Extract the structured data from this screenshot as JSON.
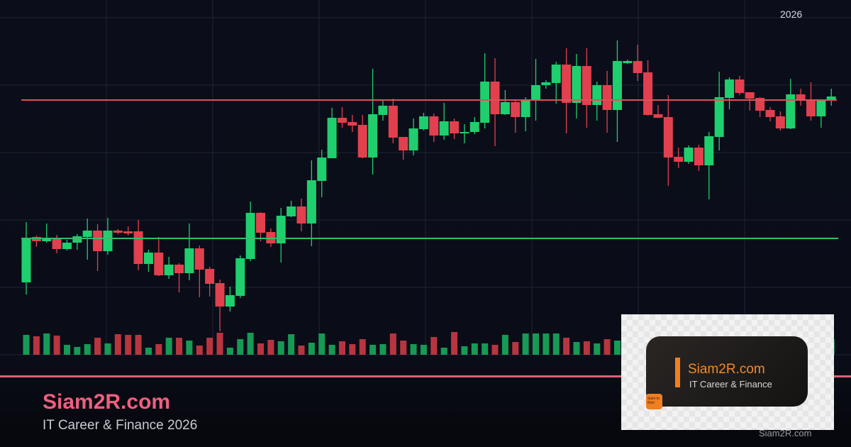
{
  "header": {
    "year_label": "2026"
  },
  "branding": {
    "site_name": "Siam2R.com",
    "tagline": "IT Career & Finance 2026",
    "accent_color": "#ee5f80",
    "logo": {
      "name": "Siam2R.com",
      "subtitle": "IT Career & Finance",
      "badge": "Siam to Rich",
      "color": "#f07f22"
    },
    "watermark": "Siam2R.com"
  },
  "chart_data": {
    "type": "candlestick",
    "title": "",
    "xlabel": "",
    "ylabel": "",
    "grid": true,
    "up_color": "#1fcf6e",
    "down_color": "#e2404e",
    "resistance_level": 359,
    "support_level": 164,
    "resistance_color": "#e0505a",
    "support_color": "#2fbf68",
    "ohlc": [
      [
        102,
        187,
        85,
        165
      ],
      [
        166,
        168,
        152,
        160
      ],
      [
        160,
        185,
        158,
        164
      ],
      [
        163,
        169,
        143,
        149
      ],
      [
        149,
        162,
        147,
        158
      ],
      [
        158,
        170,
        148,
        167
      ],
      [
        166,
        192,
        134,
        175
      ],
      [
        175,
        184,
        118,
        146
      ],
      [
        146,
        193,
        141,
        175
      ],
      [
        175,
        177,
        170,
        172
      ],
      [
        174,
        181,
        168,
        171
      ],
      [
        174,
        190,
        119,
        128
      ],
      [
        128,
        148,
        117,
        144
      ],
      [
        144,
        166,
        111,
        112
      ],
      [
        112,
        138,
        107,
        127
      ],
      [
        127,
        129,
        88,
        115
      ],
      [
        115,
        185,
        105,
        150
      ],
      [
        150,
        154,
        81,
        120
      ],
      [
        121,
        124,
        82,
        100
      ],
      [
        101,
        106,
        33,
        68
      ],
      [
        68,
        96,
        61,
        84
      ],
      [
        83,
        140,
        80,
        136
      ],
      [
        135,
        216,
        132,
        200
      ],
      [
        200,
        201,
        160,
        172
      ],
      [
        173,
        178,
        152,
        157
      ],
      [
        157,
        207,
        130,
        196
      ],
      [
        195,
        217,
        194,
        209
      ],
      [
        209,
        220,
        174,
        185
      ],
      [
        185,
        274,
        153,
        246
      ],
      [
        245,
        289,
        222,
        278
      ],
      [
        277,
        348,
        277,
        334
      ],
      [
        334,
        349,
        320,
        327
      ],
      [
        328,
        338,
        314,
        323
      ],
      [
        324,
        338,
        277,
        278
      ],
      [
        278,
        403,
        254,
        339
      ],
      [
        338,
        359,
        330,
        351
      ],
      [
        351,
        361,
        298,
        306
      ],
      [
        307,
        307,
        275,
        288
      ],
      [
        288,
        333,
        281,
        319
      ],
      [
        318,
        341,
        316,
        336
      ],
      [
        336,
        340,
        300,
        309
      ],
      [
        309,
        355,
        303,
        329
      ],
      [
        329,
        333,
        304,
        312
      ],
      [
        312,
        325,
        298,
        314
      ],
      [
        314,
        335,
        311,
        328
      ],
      [
        327,
        425,
        319,
        385
      ],
      [
        385,
        418,
        294,
        339
      ],
      [
        339,
        373,
        338,
        356
      ],
      [
        356,
        358,
        313,
        335
      ],
      [
        335,
        363,
        315,
        359
      ],
      [
        358,
        417,
        330,
        380
      ],
      [
        380,
        387,
        375,
        384
      ],
      [
        383,
        413,
        354,
        409
      ],
      [
        409,
        432,
        312,
        355
      ],
      [
        355,
        424,
        333,
        407
      ],
      [
        407,
        432,
        320,
        352
      ],
      [
        352,
        385,
        330,
        380
      ],
      [
        380,
        400,
        313,
        345
      ],
      [
        345,
        443,
        300,
        414
      ],
      [
        411,
        416,
        410,
        414
      ],
      [
        414,
        437,
        386,
        397
      ],
      [
        398,
        415,
        337,
        338
      ],
      [
        339,
        352,
        334,
        334
      ],
      [
        335,
        366,
        238,
        278
      ],
      [
        279,
        292,
        263,
        272
      ],
      [
        272,
        295,
        269,
        292
      ],
      [
        292,
        296,
        259,
        267
      ],
      [
        267,
        314,
        219,
        308
      ],
      [
        307,
        399,
        288,
        363
      ],
      [
        362,
        391,
        346,
        388
      ],
      [
        388,
        393,
        366,
        369
      ],
      [
        370,
        370,
        344,
        361
      ],
      [
        362,
        363,
        335,
        344
      ],
      [
        345,
        349,
        329,
        335
      ],
      [
        336,
        343,
        316,
        319
      ],
      [
        319,
        389,
        318,
        367
      ],
      [
        367,
        375,
        351,
        359
      ],
      [
        359,
        384,
        330,
        336
      ],
      [
        336,
        359,
        320,
        359
      ],
      [
        358,
        375,
        351,
        364
      ]
    ],
    "volume": [
      28,
      26,
      30,
      27,
      14,
      11,
      15,
      24,
      16,
      29,
      28,
      28,
      10,
      15,
      24,
      24,
      20,
      13,
      24,
      31,
      10,
      22,
      31,
      16,
      21,
      19,
      29,
      13,
      17,
      30,
      14,
      19,
      15,
      22,
      14,
      15,
      30,
      20,
      15,
      14,
      25,
      10,
      32,
      12,
      16,
      16,
      14,
      28,
      18,
      30,
      30,
      30,
      30,
      24,
      18,
      19,
      16,
      22,
      20,
      null,
      null,
      null,
      null,
      null,
      null,
      null,
      null,
      null,
      null,
      null,
      null,
      null,
      null,
      null,
      null,
      null,
      null,
      null,
      null,
      22
    ]
  }
}
